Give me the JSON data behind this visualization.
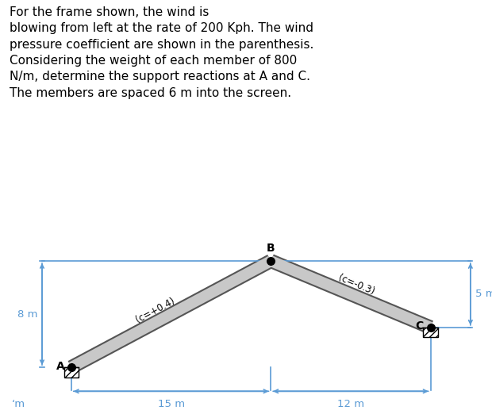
{
  "title_text": "For the frame shown, the wind is\nblowing from left at the rate of 200 Kph. The wind\npressure coefficient are shown in the parenthesis.\nConsidering the weight of each member of 800\nN/m, determine the support reactions at A and C.\nThe members are spaced 6 m into the screen.",
  "title_fontsize": 11.0,
  "bg_color": "#ffffff",
  "structure_color": "#c8c8c8",
  "edge_color": "#555555",
  "dim_color": "#5b9bd5",
  "text_color": "#000000",
  "A": [
    0,
    0
  ],
  "B": [
    15,
    8
  ],
  "C": [
    27,
    3
  ],
  "label_A": "A",
  "label_B": "B",
  "label_C": "C",
  "label_c04": "(c=+0.4)",
  "label_c03": "(c=-0.3)",
  "dim_8m": "8 m",
  "dim_5m": "5 m",
  "dim_15m": "15 m",
  "dim_12m": "12 m",
  "dim_left": "‘m"
}
